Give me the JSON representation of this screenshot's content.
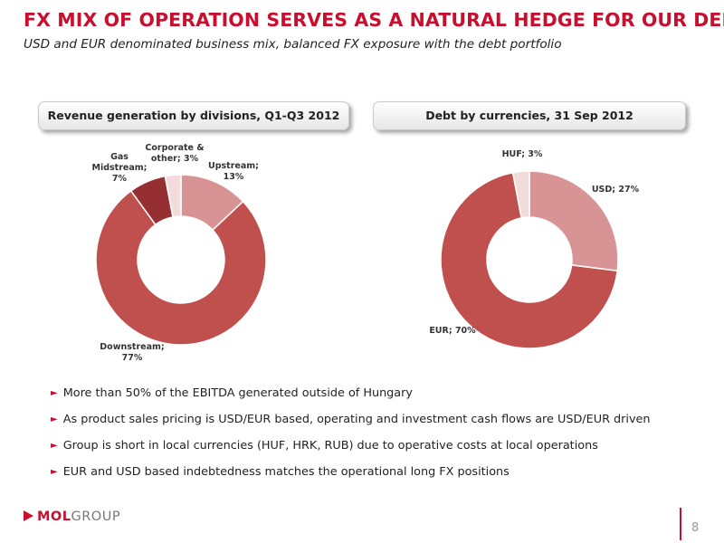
{
  "header": {
    "title": "FX MIX OF OPERATION SERVES AS A NATURAL HEDGE FOR OUR DEBT",
    "subtitle": "USD and EUR denominated business mix, balanced FX exposure with the debt portfolio"
  },
  "chart_data": [
    {
      "type": "pie",
      "title": "Revenue generation by divisions, Q1-Q3 2012",
      "slices": [
        {
          "label": "Upstream; 13%",
          "name": "Upstream",
          "value": 13,
          "color": "#d89495"
        },
        {
          "label": "Downstream; 77%",
          "name": "Downstream",
          "value": 77,
          "color": "#c0504d"
        },
        {
          "label": "Gas Midstream; 7%",
          "name": "Gas Midstream",
          "value": 7,
          "color": "#962f31"
        },
        {
          "label": "Corporate & other; 3%",
          "name": "Corporate & other",
          "value": 3,
          "color": "#f2dcdb"
        }
      ]
    },
    {
      "type": "pie",
      "title": "Debt by currencies, 31 Sep 2012",
      "slices": [
        {
          "label": "USD; 27%",
          "name": "USD",
          "value": 27,
          "color": "#d89495"
        },
        {
          "label": "EUR; 70%",
          "name": "EUR",
          "value": 70,
          "color": "#c0504d"
        },
        {
          "label": "HUF; 3%",
          "name": "HUF",
          "value": 3,
          "color": "#f2dcdb"
        }
      ]
    }
  ],
  "bullets": [
    "More than 50% of the EBITDA generated outside of Hungary",
    "As product sales pricing is USD/EUR based, operating and investment cash flows are USD/EUR driven",
    "Group is short in local currencies (HUF, HRK, RUB) due to operative costs at local operations",
    "EUR and USD based indebtedness matches the operational long FX positions"
  ],
  "footer": {
    "logo_mol": "MOL",
    "logo_group": "GROUP",
    "page_number": "8"
  },
  "colors": {
    "accent": "#c8102e",
    "bullet_arrow": "#c8102e"
  },
  "icons": {
    "bullet": "triangle-right-icon",
    "logo": "mol-logo-icon"
  }
}
